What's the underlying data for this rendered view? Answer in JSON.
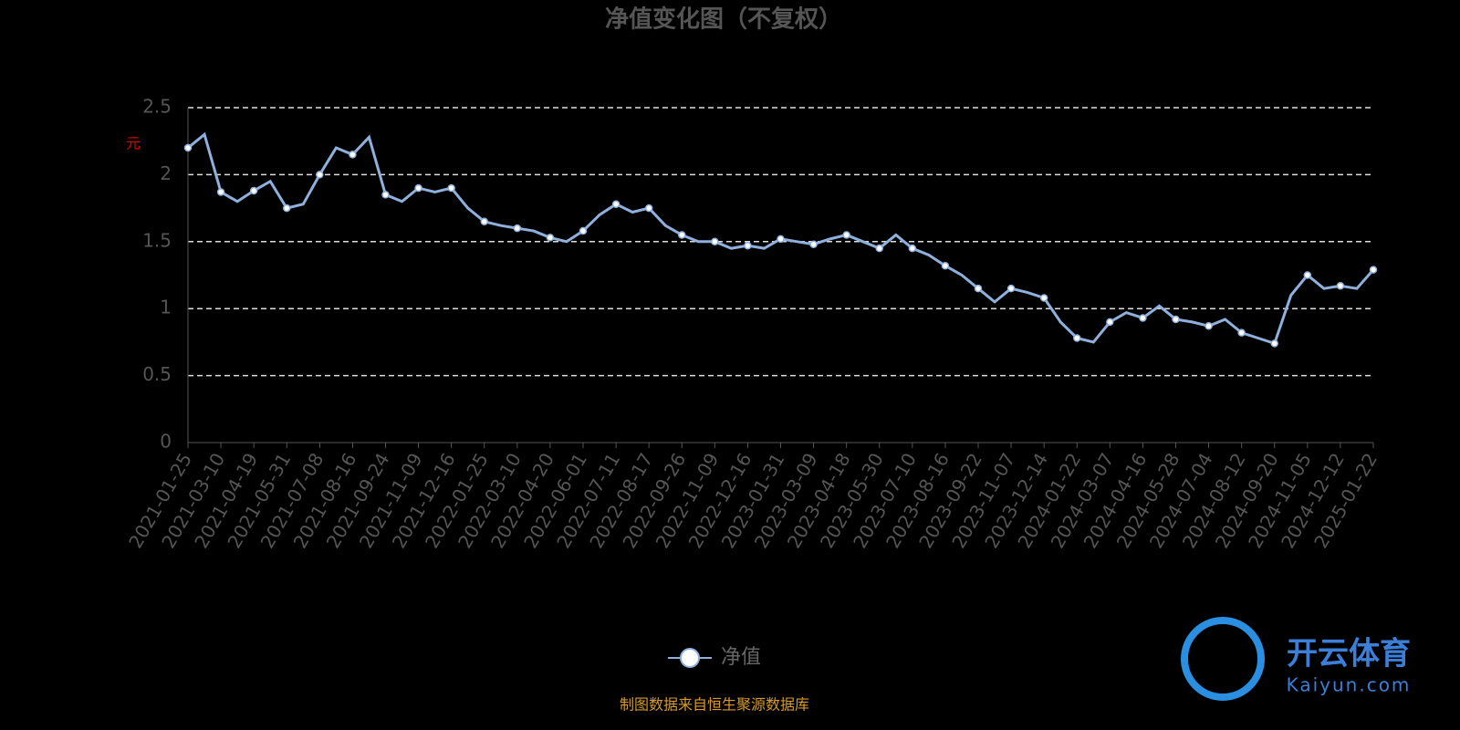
{
  "chart_data": {
    "type": "line",
    "title": "净值变化图（不复权）",
    "y_label": "元",
    "source": "制图数据来自恒生聚源数据库",
    "logo": {
      "text": "开云体育",
      "url": "Kaiyun.com"
    },
    "categories": [
      "2021-01-25",
      null,
      "2021-03-10",
      null,
      "2021-04-19",
      null,
      "2021-05-31",
      null,
      "2021-07-08",
      null,
      "2021-08-16",
      null,
      "2021-09-24",
      null,
      "2021-11-09",
      null,
      "2021-12-16",
      null,
      "2022-01-25",
      null,
      "2022-03-10",
      null,
      "2022-04-20",
      null,
      "2022-06-01",
      null,
      "2022-07-11",
      null,
      "2022-08-17",
      null,
      "2022-09-26",
      null,
      "2022-11-09",
      null,
      "2022-12-16",
      null,
      "2023-01-31",
      null,
      "2023-03-09",
      null,
      "2023-04-18",
      null,
      "2023-05-30",
      null,
      "2023-07-10",
      null,
      "2023-08-16",
      null,
      "2023-09-22",
      null,
      "2023-11-07",
      null,
      "2023-12-14",
      null,
      "2024-01-22",
      null,
      "2024-03-07",
      null,
      "2024-04-16",
      null,
      "2024-05-28",
      null,
      "2024-07-04",
      null,
      "2024-08-12",
      null,
      "2024-09-20",
      null,
      "2024-11-05",
      null,
      "2024-12-12",
      null,
      "2025-01-22"
    ],
    "series": [
      {
        "name": "净值",
        "color": "#8fb0dc",
        "values": [
          2.2,
          2.3,
          1.87,
          1.8,
          1.88,
          1.95,
          1.75,
          1.78,
          2.0,
          2.2,
          2.15,
          2.28,
          1.85,
          1.8,
          1.9,
          1.87,
          1.9,
          1.75,
          1.65,
          1.62,
          1.6,
          1.58,
          1.53,
          1.5,
          1.58,
          1.7,
          1.78,
          1.72,
          1.75,
          1.62,
          1.55,
          1.5,
          1.5,
          1.45,
          1.47,
          1.45,
          1.52,
          1.5,
          1.48,
          1.52,
          1.55,
          1.5,
          1.45,
          1.55,
          1.45,
          1.4,
          1.32,
          1.25,
          1.15,
          1.05,
          1.15,
          1.12,
          1.08,
          0.9,
          0.78,
          0.75,
          0.9,
          0.97,
          0.93,
          1.02,
          0.92,
          0.9,
          0.87,
          0.92,
          0.82,
          0.78,
          0.74,
          1.1,
          1.25,
          1.15,
          1.17,
          1.15,
          1.29
        ]
      }
    ],
    "ylim": [
      0,
      2.5
    ],
    "yticks": [
      0,
      0.5,
      1,
      1.5,
      2,
      2.5
    ],
    "grid": true
  }
}
